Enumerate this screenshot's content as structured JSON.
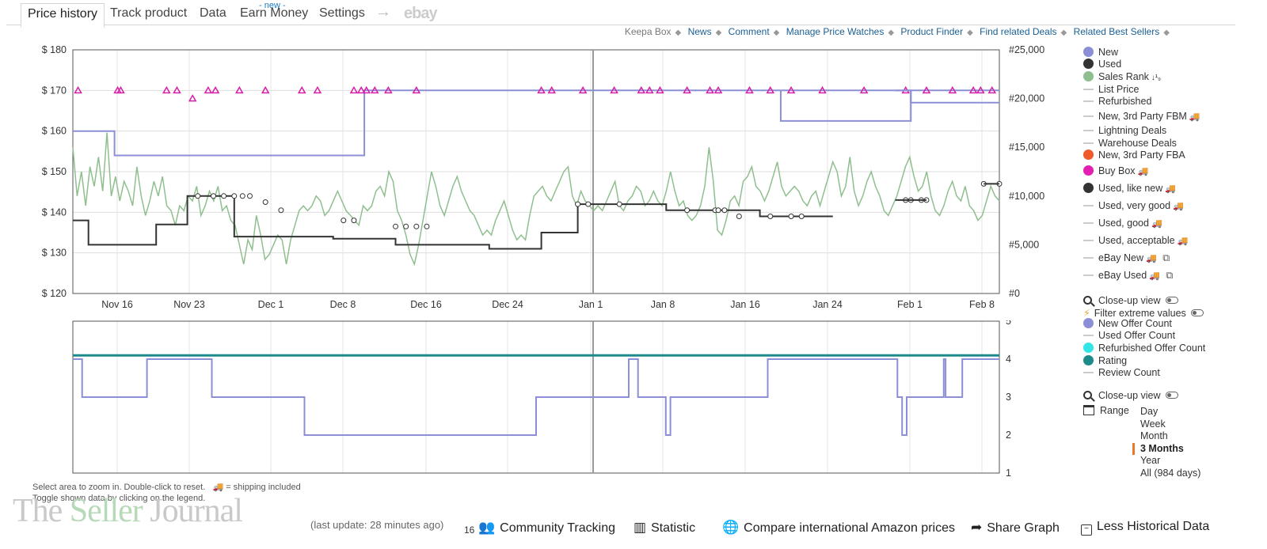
{
  "tabs": [
    {
      "label": "Price history",
      "active": true
    },
    {
      "label": "Track product"
    },
    {
      "label": "Data"
    },
    {
      "label": "Earn Money",
      "badge": "- new -"
    },
    {
      "label": "Settings"
    },
    {
      "label": "ebay"
    }
  ],
  "toplinks": {
    "keepa_box": "Keepa Box",
    "links": [
      "News",
      "Comment",
      "Manage Price Watches",
      "Product Finder",
      "Find related Deals",
      "Related Best Sellers"
    ]
  },
  "chart_data": [
    {
      "type": "line",
      "y_left_ticks": [
        "$ 180",
        "$ 170",
        "$ 160",
        "$ 150",
        "$ 140",
        "$ 130",
        "$ 120"
      ],
      "y_right_ticks": [
        "#25,000",
        "#20,000",
        "#15,000",
        "#10,000",
        "#5,000",
        "#0"
      ],
      "x_ticks": [
        "Nov 16",
        "Nov 23",
        "Dec 1",
        "Dec 8",
        "Dec 16",
        "Dec 24",
        "Jan 1",
        "Jan 8",
        "Jan 16",
        "Jan 24",
        "Feb 1",
        "Feb 8"
      ],
      "ylim": [
        120,
        180
      ],
      "rank_lim": [
        0,
        25000
      ],
      "series": [
        {
          "name": "New",
          "color": "#8c8fd6",
          "step": [
            [
              0,
              160
            ],
            [
              4,
              160
            ],
            [
              4,
              154
            ],
            [
              28,
              154
            ],
            [
              28,
              170
            ],
            [
              89,
              170
            ]
          ]
        },
        {
          "name": "Used",
          "color": "#333333",
          "step": [
            [
              0,
              138
            ],
            [
              1.5,
              138
            ],
            [
              1.5,
              132
            ],
            [
              8,
              132
            ],
            [
              8,
              137
            ],
            [
              11,
              137
            ],
            [
              11,
              144
            ],
            [
              15.5,
              144
            ],
            [
              15.5,
              134
            ],
            [
              25,
              134
            ],
            [
              25,
              133.5
            ],
            [
              31,
              133.5
            ],
            [
              31,
              132
            ],
            [
              40,
              132
            ],
            [
              40,
              131
            ],
            [
              45,
              131
            ],
            [
              45,
              135
            ],
            [
              48.5,
              135
            ],
            [
              48.5,
              142
            ],
            [
              57,
              142
            ],
            [
              57,
              140.5
            ],
            [
              66,
              140.5
            ],
            [
              66,
              139
            ],
            [
              73,
              139
            ]
          ]
        },
        {
          "name": "Buy Box",
          "color": "#d61fa8",
          "points": [
            [
              0.5,
              170
            ],
            [
              4.3,
              170
            ],
            [
              4.6,
              170
            ],
            [
              9,
              170
            ],
            [
              10,
              170
            ],
            [
              11.5,
              168
            ],
            [
              13,
              170
            ],
            [
              13.7,
              170
            ],
            [
              16,
              170
            ],
            [
              18.5,
              170
            ],
            [
              22,
              170
            ],
            [
              23.5,
              170
            ],
            [
              27,
              170
            ],
            [
              27.7,
              170
            ],
            [
              28.2,
              170
            ],
            [
              29,
              170
            ],
            [
              30.3,
              170
            ],
            [
              33,
              170
            ],
            [
              45,
              170
            ],
            [
              46,
              170
            ],
            [
              49,
              170
            ],
            [
              52,
              170
            ],
            [
              54.6,
              170
            ],
            [
              55.4,
              170
            ],
            [
              56.4,
              170
            ],
            [
              59,
              170
            ],
            [
              61.2,
              170
            ],
            [
              62,
              170
            ],
            [
              65,
              170
            ],
            [
              67,
              170
            ],
            [
              69,
              170
            ],
            [
              72,
              170
            ],
            [
              76,
              170
            ],
            [
              80,
              170
            ],
            [
              82,
              170
            ],
            [
              84.5,
              170
            ],
            [
              86.5,
              170
            ],
            [
              87.2,
              170
            ],
            [
              88.3,
              170
            ]
          ]
        }
      ],
      "sales_rank": [
        15000,
        10000,
        12500,
        9000,
        13000,
        11000,
        14000,
        10500,
        16500,
        10000,
        12000,
        9500,
        11500,
        10500,
        9000,
        13000,
        10000,
        8000,
        9500,
        11500,
        10000,
        12000,
        9000,
        8500,
        7000,
        9000,
        8500,
        10000,
        9500,
        11000,
        8000,
        9000,
        10500,
        9500,
        11000,
        8500,
        9000,
        7500,
        7000,
        5000,
        3000,
        5500,
        4500,
        8000,
        6000,
        3500,
        4000,
        5000,
        6000,
        5500,
        3000,
        5500,
        7000,
        8500,
        9000,
        8500,
        9000,
        10000,
        9500,
        8000,
        8500,
        9500,
        10500,
        9500,
        8500,
        8000,
        7500,
        7000,
        9000,
        8500,
        9000,
        10500,
        11000,
        10000,
        12500,
        11500,
        8500,
        7500,
        6000,
        4000,
        3000,
        5000,
        7500,
        10000,
        12500,
        11000,
        9000,
        8000,
        9500,
        11000,
        12000,
        10500,
        9500,
        8500,
        8000,
        7000,
        6000,
        6500,
        6000,
        7500,
        8500,
        9500,
        8000,
        6500,
        5500,
        6000,
        5500,
        8000,
        10000,
        10500,
        11000,
        10000,
        9500,
        10500,
        11500,
        12500,
        13000,
        10000,
        9000,
        10500,
        9500,
        9000,
        8500,
        9000,
        8500,
        9500,
        10500,
        11500,
        9000,
        8500,
        9500,
        10000,
        11000,
        10500,
        9000,
        9500,
        10500,
        9500,
        9000,
        10500,
        12500,
        10500,
        9000,
        9500,
        8000,
        7500,
        8000,
        9000,
        11000,
        15000,
        11500,
        6500,
        6000,
        7500,
        9500,
        10000,
        9000,
        11500,
        12000,
        13000,
        11000,
        10500,
        9500,
        10500,
        12000,
        13500,
        11000,
        10000,
        10500,
        11000,
        10500,
        9500,
        9000,
        10000,
        10500,
        9000,
        10500,
        12000,
        13500,
        12500,
        10000,
        11000,
        14000,
        10500,
        9000,
        10000,
        11500,
        12500,
        11000,
        10000,
        8500,
        8000,
        9000,
        10000,
        11500,
        13000,
        14000,
        12000,
        10500,
        11000,
        12500,
        10000,
        8500,
        8000,
        9000,
        10500,
        11500,
        10000,
        9500,
        11000,
        9000,
        8500,
        7500,
        8000,
        9500,
        11000,
        10000,
        9500
      ]
    },
    {
      "type": "line",
      "y_ticks": [
        "5",
        "4",
        "3",
        "2",
        "1"
      ],
      "ylim": [
        1,
        5
      ],
      "series": [
        {
          "name": "New Offer Count",
          "color": "#8c8fd6",
          "step": [
            [
              0,
              4
            ],
            [
              1,
              4
            ],
            [
              1,
              3
            ],
            [
              8,
              3
            ],
            [
              8,
              4
            ],
            [
              15,
              4
            ],
            [
              15,
              3
            ],
            [
              25,
              3
            ],
            [
              25,
              2
            ],
            [
              50,
              2
            ],
            [
              50,
              3
            ],
            [
              60,
              3
            ],
            [
              60,
              4
            ],
            [
              61,
              4
            ],
            [
              61,
              3
            ],
            [
              64,
              3
            ],
            [
              64,
              2
            ],
            [
              64.5,
              2
            ],
            [
              64.5,
              3
            ],
            [
              75,
              3
            ],
            [
              75,
              4
            ],
            [
              89,
              4
            ],
            [
              89,
              3
            ],
            [
              89.5,
              3
            ],
            [
              89.5,
              2
            ],
            [
              90,
              2
            ],
            [
              90,
              3
            ],
            [
              94,
              3
            ],
            [
              94,
              4
            ],
            [
              94.2,
              4
            ],
            [
              94.2,
              3
            ],
            [
              96,
              3
            ],
            [
              96,
              4
            ],
            [
              100,
              4
            ]
          ]
        },
        {
          "name": "Rating",
          "color": "#1f8a8a",
          "values": [
            4.1
          ]
        }
      ]
    }
  ],
  "legend_main": [
    {
      "label": "New",
      "type": "dot",
      "color": "#8c8fd6"
    },
    {
      "label": "Used",
      "type": "dot",
      "color": "#333333"
    },
    {
      "label": "Sales Rank",
      "type": "dot",
      "color": "#8fbf8f",
      "suffix": "↓¹₉"
    },
    {
      "label": "List Price",
      "type": "line"
    },
    {
      "label": "Refurbished",
      "type": "line"
    },
    {
      "label": "New, 3rd Party FBM",
      "type": "line",
      "truck": true
    },
    {
      "label": "Lightning Deals",
      "type": "line"
    },
    {
      "label": "Warehouse Deals",
      "type": "line"
    },
    {
      "label": "New, 3rd Party FBA",
      "type": "dot",
      "color": "#ee5a2a"
    },
    {
      "label": "Buy Box",
      "type": "dot",
      "color": "#e31fb2",
      "truck": true
    },
    {
      "label": "Used, like new",
      "type": "dot",
      "color": "#333333",
      "truck": true
    },
    {
      "label": "Used, very good",
      "type": "line",
      "truck": true
    },
    {
      "label": "Used, good",
      "type": "line",
      "truck": true
    },
    {
      "label": "Used, acceptable",
      "type": "line",
      "truck": true
    },
    {
      "label": "eBay New",
      "type": "line",
      "truck": true,
      "external": true
    },
    {
      "label": "eBay Used",
      "type": "line",
      "truck": true,
      "external": true
    }
  ],
  "closeup_label": "Close-up view",
  "filter_label": "Filter extreme values",
  "legend_sub": [
    {
      "label": "New Offer Count",
      "type": "dot",
      "color": "#8c8fd6"
    },
    {
      "label": "Used Offer Count",
      "type": "line"
    },
    {
      "label": "Refurbished Offer Count",
      "type": "dot",
      "color": "#33e6e6"
    },
    {
      "label": "Rating",
      "type": "dot",
      "color": "#1f8a8a"
    },
    {
      "label": "Review Count",
      "type": "line"
    }
  ],
  "range": {
    "label": "Range",
    "options": [
      "Day",
      "Week",
      "Month",
      "3 Months",
      "Year",
      "All (984 days)"
    ],
    "active": "3 Months"
  },
  "hints": {
    "zoom": "Select area to zoom in. Double-click to reset.",
    "shipping": "= shipping included",
    "toggle": "Toggle shown data by clicking on the legend."
  },
  "watermark": {
    "before": "The ",
    "highlight": "Seller",
    "after": " Journal"
  },
  "footer": {
    "last_update": "(last update: 28 minutes ago)",
    "community_count": "16",
    "community": "Community Tracking",
    "statistic": "Statistic",
    "compare": "Compare international Amazon prices",
    "share": "Share Graph",
    "less": "Less Historical Data"
  }
}
